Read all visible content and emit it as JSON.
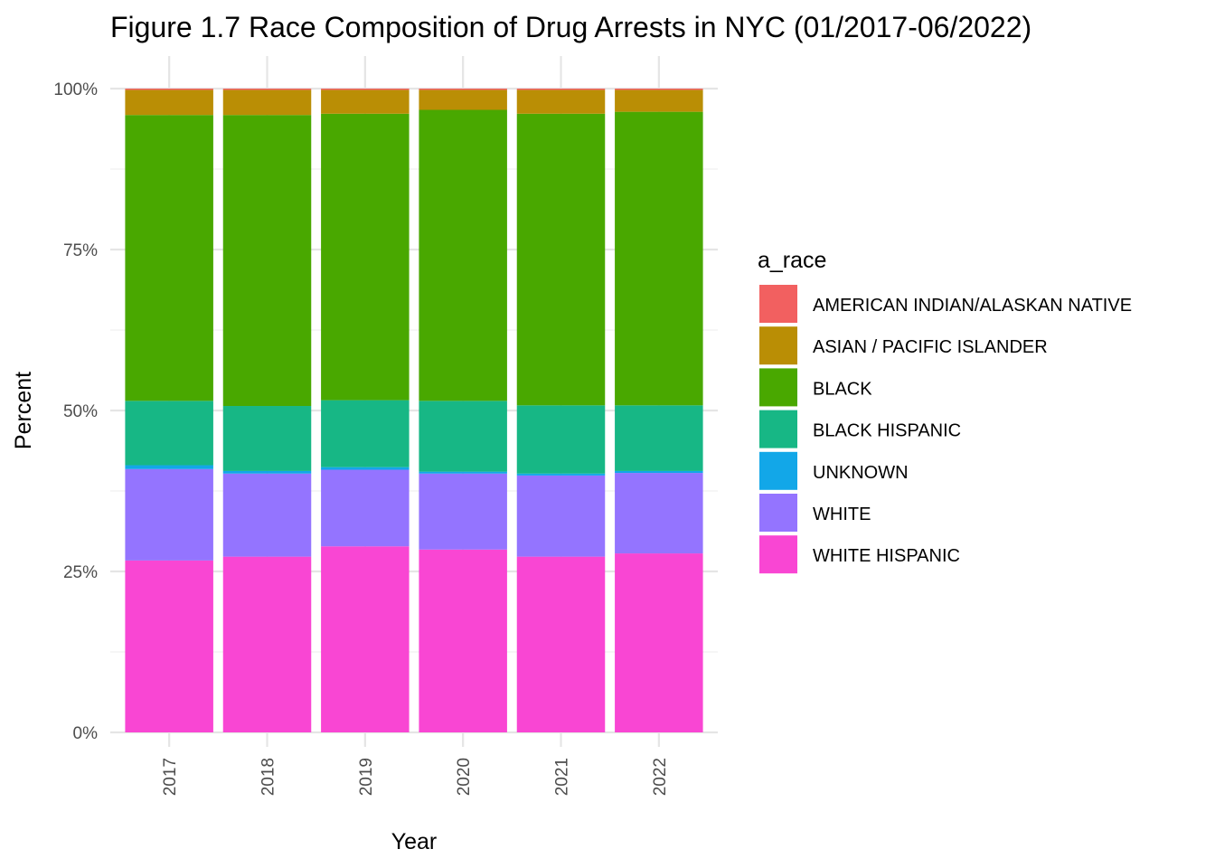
{
  "chart_data": {
    "type": "bar",
    "stacked": true,
    "percent": true,
    "title": "Figure 1.7 Race Composition of Drug Arrests in NYC (01/2017-06/2022)",
    "xlabel": "Year",
    "ylabel": "Percent",
    "ylim": [
      0,
      1
    ],
    "y_ticks": [
      {
        "value": 0,
        "label": "0%"
      },
      {
        "value": 0.25,
        "label": "25%"
      },
      {
        "value": 0.5,
        "label": "50%"
      },
      {
        "value": 0.75,
        "label": "75%"
      },
      {
        "value": 1,
        "label": "100%"
      }
    ],
    "categories": [
      "2017",
      "2018",
      "2019",
      "2020",
      "2021",
      "2022"
    ],
    "legend_title": "a_race",
    "legend_position": "right",
    "grid": true,
    "series": [
      {
        "name": "WHITE HISPANIC",
        "color": "#F946D3",
        "values": [
          0.267,
          0.273,
          0.289,
          0.284,
          0.273,
          0.278
        ]
      },
      {
        "name": "WHITE",
        "color": "#9474FF",
        "values": [
          0.142,
          0.129,
          0.119,
          0.118,
          0.126,
          0.125
        ]
      },
      {
        "name": "UNKNOWN",
        "color": "#12A7E8",
        "values": [
          0.006,
          0.004,
          0.004,
          0.003,
          0.003,
          0.003
        ]
      },
      {
        "name": "BLACK HISPANIC",
        "color": "#17B785",
        "values": [
          0.1,
          0.101,
          0.104,
          0.11,
          0.106,
          0.102
        ]
      },
      {
        "name": "BLACK",
        "color": "#49A800",
        "values": [
          0.444,
          0.452,
          0.445,
          0.452,
          0.453,
          0.456
        ]
      },
      {
        "name": "ASIAN / PACIFIC ISLANDER",
        "color": "#BA8E05",
        "values": [
          0.039,
          0.039,
          0.037,
          0.031,
          0.037,
          0.034
        ]
      },
      {
        "name": "AMERICAN INDIAN/ALASKAN NATIVE",
        "color": "#F26060",
        "values": [
          0.002,
          0.002,
          0.002,
          0.002,
          0.002,
          0.002
        ]
      }
    ],
    "legend_order": [
      "AMERICAN INDIAN/ALASKAN NATIVE",
      "ASIAN / PACIFIC ISLANDER",
      "BLACK",
      "BLACK HISPANIC",
      "UNKNOWN",
      "WHITE",
      "WHITE HISPANIC"
    ]
  }
}
